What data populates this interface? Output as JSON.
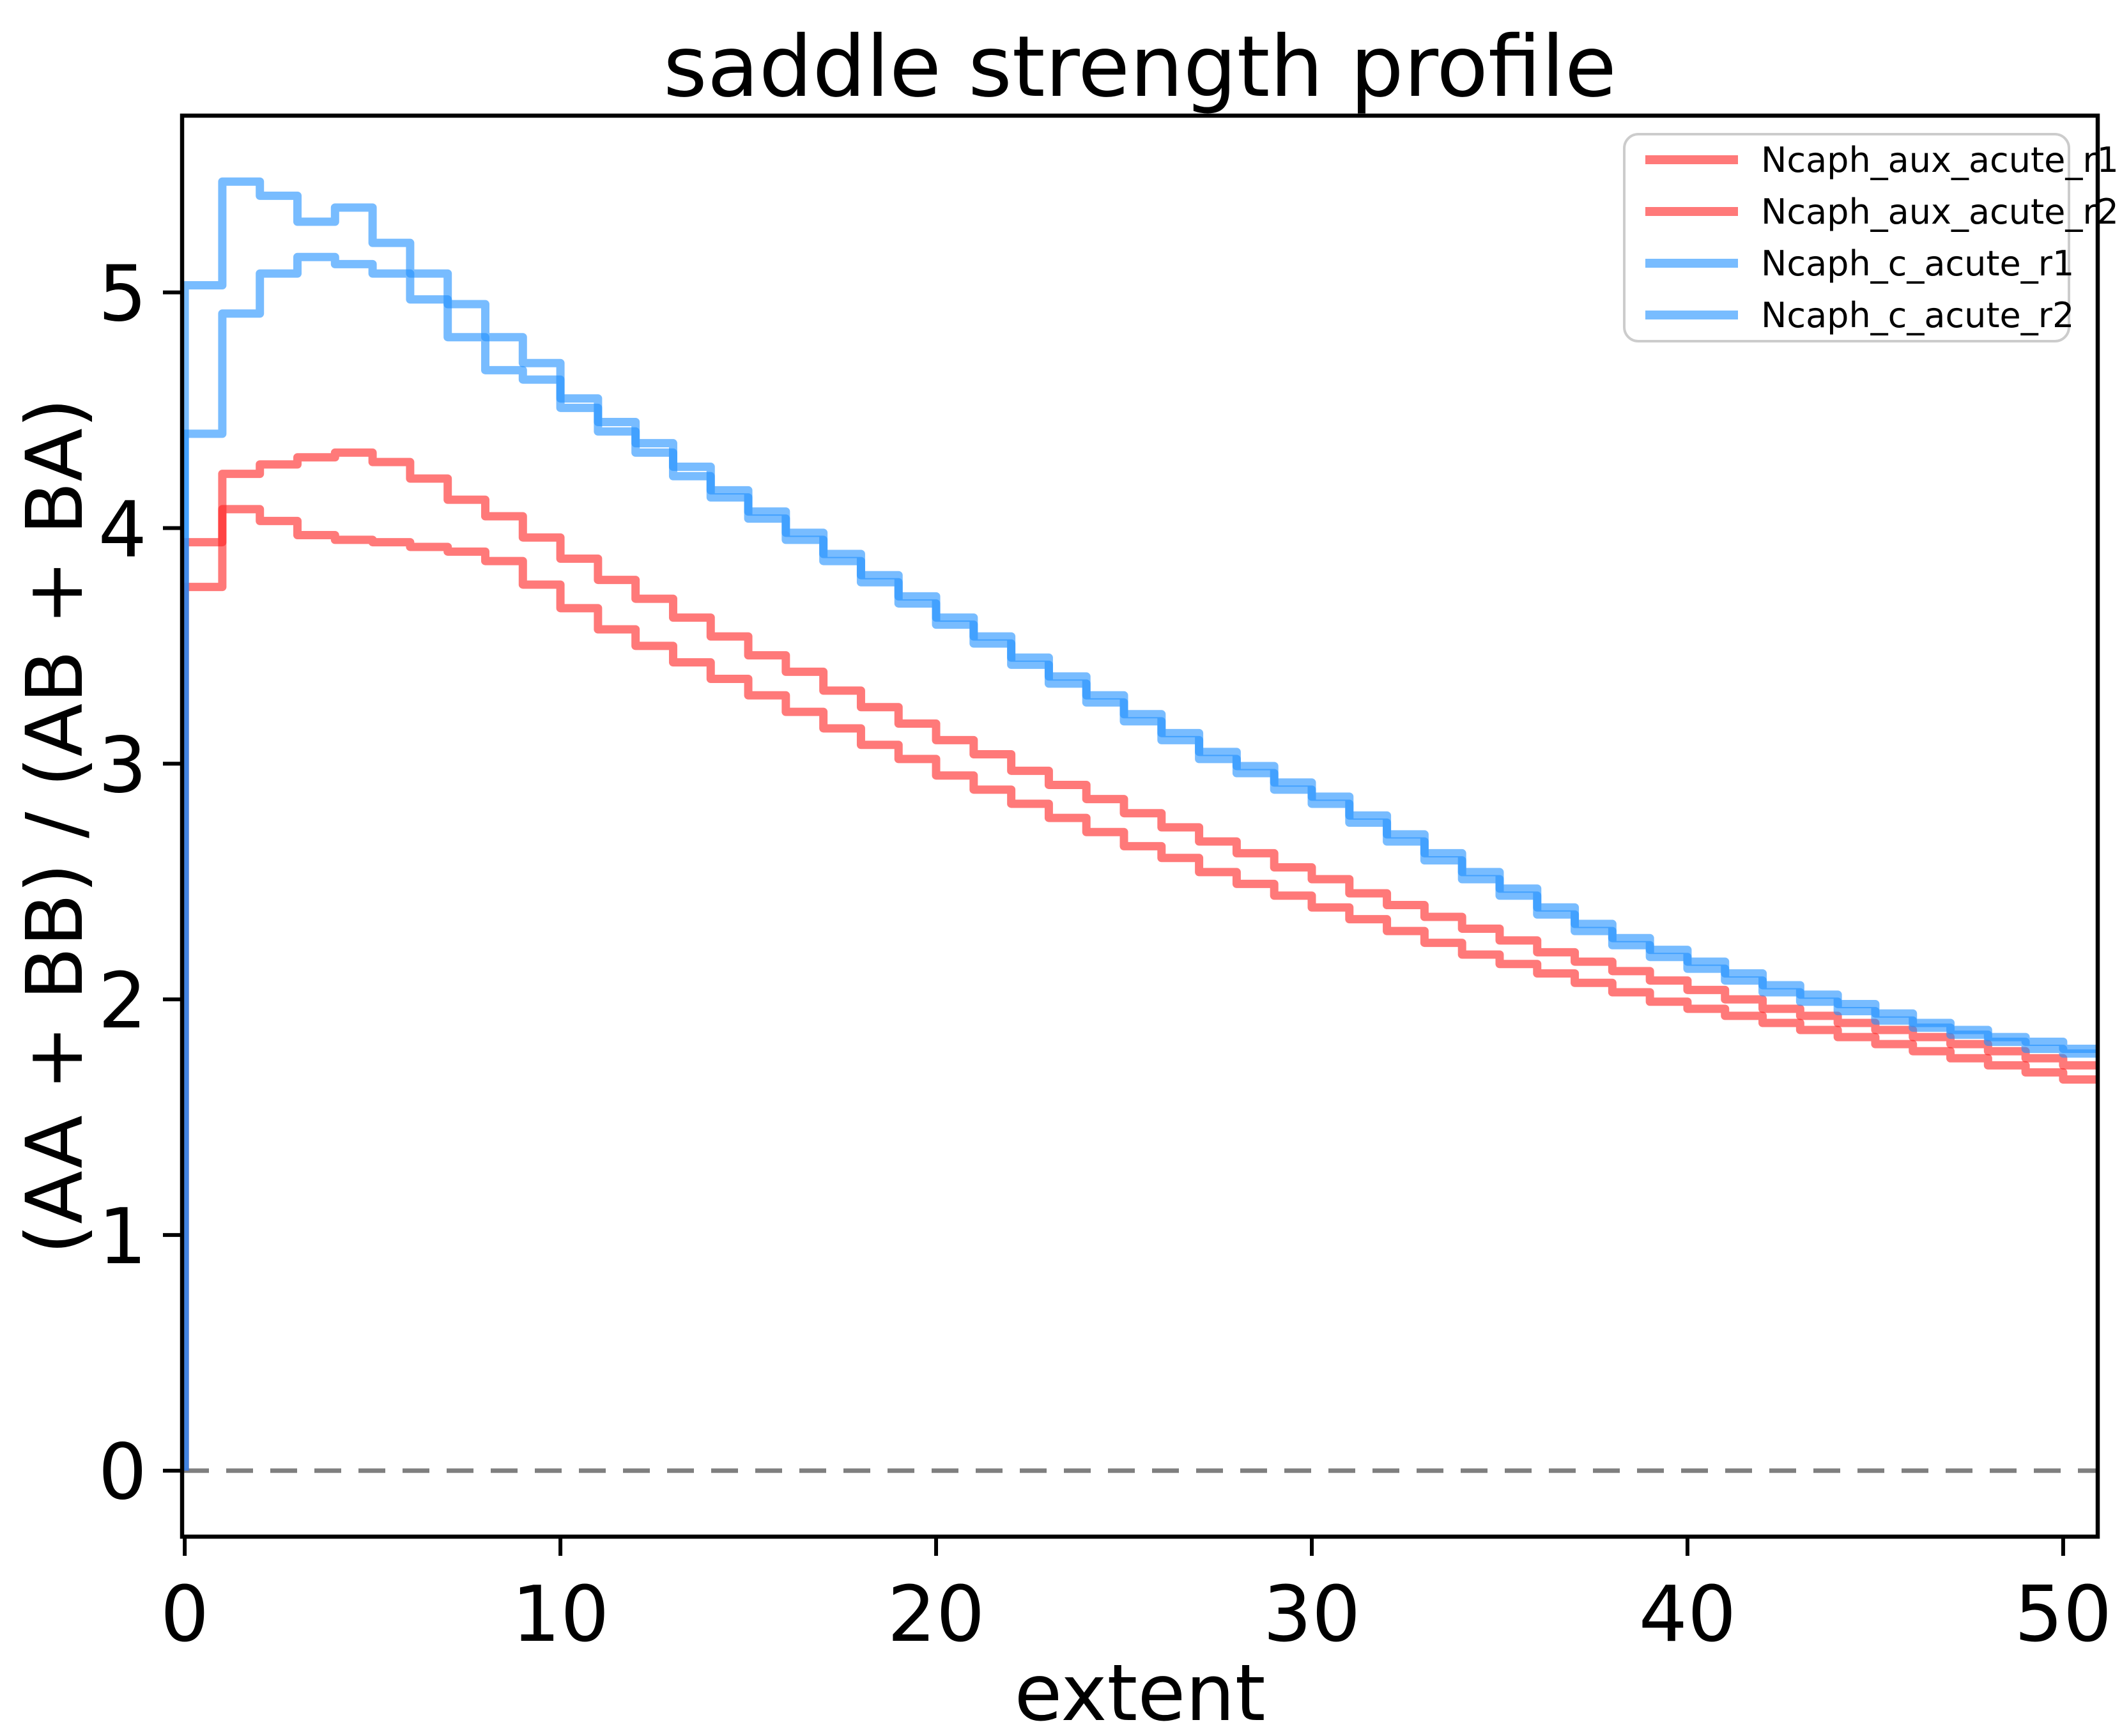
{
  "figure": {
    "title": "saddle strength profile",
    "xlabel": "extent",
    "ylabel": "(AA + BB) / (AB + BA)"
  },
  "chart_data": {
    "type": "line",
    "subtype": "step-post-histogram",
    "title": "saddle strength profile",
    "xlabel": "extent",
    "ylabel": "(AA + BB) / (AB + BA)",
    "xlim": [
      -0.07,
      50.92
    ],
    "ylim": [
      -0.28,
      5.75
    ],
    "xticks": [
      0,
      10,
      20,
      30,
      40,
      50
    ],
    "yticks": [
      0,
      1,
      2,
      3,
      4,
      5
    ],
    "grid": false,
    "legend_position": "upper right",
    "background": "#ffffff",
    "spine_color": "#000000",
    "zero_line": {
      "y": 0,
      "color": "#7f7f7f",
      "dashed": true
    },
    "bin_start": 0,
    "bin_width": 1,
    "line_width": 13,
    "line_opacity": 0.6,
    "series": [
      {
        "name": "Ncaph_aux_acute_r1",
        "color": "#ff2020",
        "values": [
          3.94,
          4.23,
          4.27,
          4.3,
          4.32,
          4.28,
          4.21,
          4.12,
          4.05,
          3.96,
          3.87,
          3.78,
          3.7,
          3.62,
          3.54,
          3.46,
          3.39,
          3.31,
          3.24,
          3.17,
          3.1,
          3.04,
          2.97,
          2.91,
          2.85,
          2.79,
          2.73,
          2.67,
          2.62,
          2.56,
          2.51,
          2.45,
          2.4,
          2.35,
          2.3,
          2.25,
          2.2,
          2.16,
          2.12,
          2.08,
          2.04,
          2.0,
          1.96,
          1.93,
          1.9,
          1.87,
          1.84,
          1.81,
          1.78,
          1.75,
          1.72
        ]
      },
      {
        "name": "Ncaph_aux_acute_r2",
        "color": "#ff2020",
        "values": [
          3.75,
          4.08,
          4.03,
          3.97,
          3.95,
          3.94,
          3.92,
          3.9,
          3.86,
          3.76,
          3.66,
          3.57,
          3.5,
          3.43,
          3.36,
          3.29,
          3.22,
          3.15,
          3.08,
          3.02,
          2.95,
          2.89,
          2.83,
          2.77,
          2.71,
          2.65,
          2.6,
          2.54,
          2.49,
          2.44,
          2.39,
          2.34,
          2.29,
          2.24,
          2.19,
          2.15,
          2.11,
          2.07,
          2.03,
          1.99,
          1.96,
          1.93,
          1.9,
          1.87,
          1.84,
          1.81,
          1.78,
          1.75,
          1.72,
          1.69,
          1.66
        ]
      },
      {
        "name": "Ncaph_c_acute_r1",
        "color": "#1e90ff",
        "values": [
          5.03,
          5.47,
          5.41,
          5.3,
          5.36,
          5.21,
          5.08,
          4.95,
          4.81,
          4.7,
          4.55,
          4.45,
          4.36,
          4.26,
          4.16,
          4.07,
          3.98,
          3.89,
          3.8,
          3.71,
          3.62,
          3.54,
          3.45,
          3.37,
          3.29,
          3.21,
          3.13,
          3.05,
          2.99,
          2.92,
          2.86,
          2.78,
          2.7,
          2.62,
          2.54,
          2.47,
          2.39,
          2.32,
          2.26,
          2.21,
          2.16,
          2.11,
          2.06,
          2.02,
          1.98,
          1.94,
          1.9,
          1.87,
          1.84,
          1.82,
          1.79
        ]
      },
      {
        "name": "Ncaph_c_acute_r2",
        "color": "#1e90ff",
        "values": [
          4.4,
          4.91,
          5.08,
          5.15,
          5.12,
          5.08,
          4.97,
          4.81,
          4.67,
          4.63,
          4.51,
          4.41,
          4.32,
          4.22,
          4.13,
          4.04,
          3.95,
          3.86,
          3.77,
          3.68,
          3.59,
          3.51,
          3.42,
          3.34,
          3.26,
          3.18,
          3.1,
          3.02,
          2.96,
          2.89,
          2.83,
          2.75,
          2.67,
          2.59,
          2.51,
          2.44,
          2.36,
          2.29,
          2.23,
          2.18,
          2.13,
          2.08,
          2.03,
          1.99,
          1.95,
          1.91,
          1.88,
          1.85,
          1.82,
          1.79,
          1.77
        ]
      }
    ]
  }
}
